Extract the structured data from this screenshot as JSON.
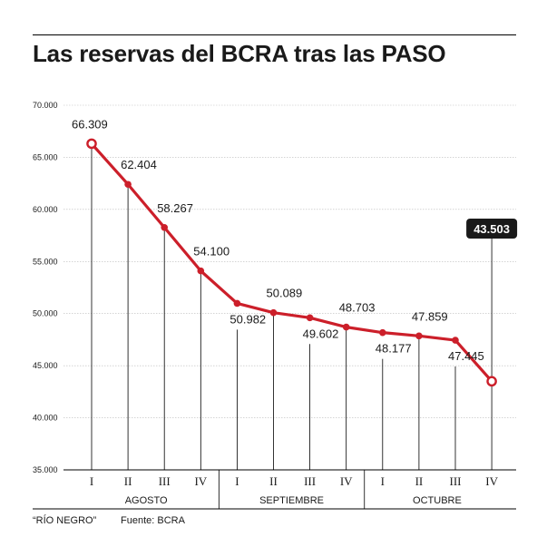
{
  "title": "Las reservas del BCRA tras las PASO",
  "footer": {
    "source_outlet": "“RÍO NEGRO”",
    "source": "Fuente: BCRA"
  },
  "colors": {
    "line": "#cc1f2a",
    "text": "#1a1a1a",
    "grid": "#bbbbbb",
    "callout_bg": "#1a1a1a"
  },
  "chart_data": {
    "type": "line",
    "title": "Las reservas del BCRA tras las PASO",
    "xlabel": "",
    "ylabel": "",
    "ylim": [
      35000,
      70000
    ],
    "y_ticks": [
      {
        "value": 35000,
        "label": "35.000"
      },
      {
        "value": 40000,
        "label": "40.000"
      },
      {
        "value": 45000,
        "label": "45.000"
      },
      {
        "value": 50000,
        "label": "50.000"
      },
      {
        "value": 55000,
        "label": "55.000"
      },
      {
        "value": 60000,
        "label": "60.000"
      },
      {
        "value": 65000,
        "label": "65.000"
      },
      {
        "value": 70000,
        "label": "70.000"
      }
    ],
    "grid": true,
    "groups": [
      {
        "label": "AGOSTO",
        "weeks": [
          "I",
          "II",
          "III",
          "IV"
        ]
      },
      {
        "label": "SEPTIEMBRE",
        "weeks": [
          "I",
          "II",
          "III",
          "IV"
        ]
      },
      {
        "label": "OCTUBRE",
        "weeks": [
          "I",
          "II",
          "III",
          "IV"
        ]
      }
    ],
    "series": [
      {
        "values": [
          66309,
          62404,
          58267,
          54100,
          50982,
          50089,
          49602,
          48703,
          48177,
          47859,
          47445,
          43503
        ],
        "labels": [
          "66.309",
          "62.404",
          "58.267",
          "54.100",
          "50.982",
          "50.089",
          "49.602",
          "48.703",
          "48.177",
          "47.859",
          "47.445",
          "43.503"
        ],
        "label_position": [
          "above",
          "above",
          "above",
          "above",
          "below",
          "above",
          "below",
          "above",
          "below",
          "above",
          "below",
          "callout"
        ],
        "hollow_points": [
          0,
          11
        ]
      }
    ]
  }
}
